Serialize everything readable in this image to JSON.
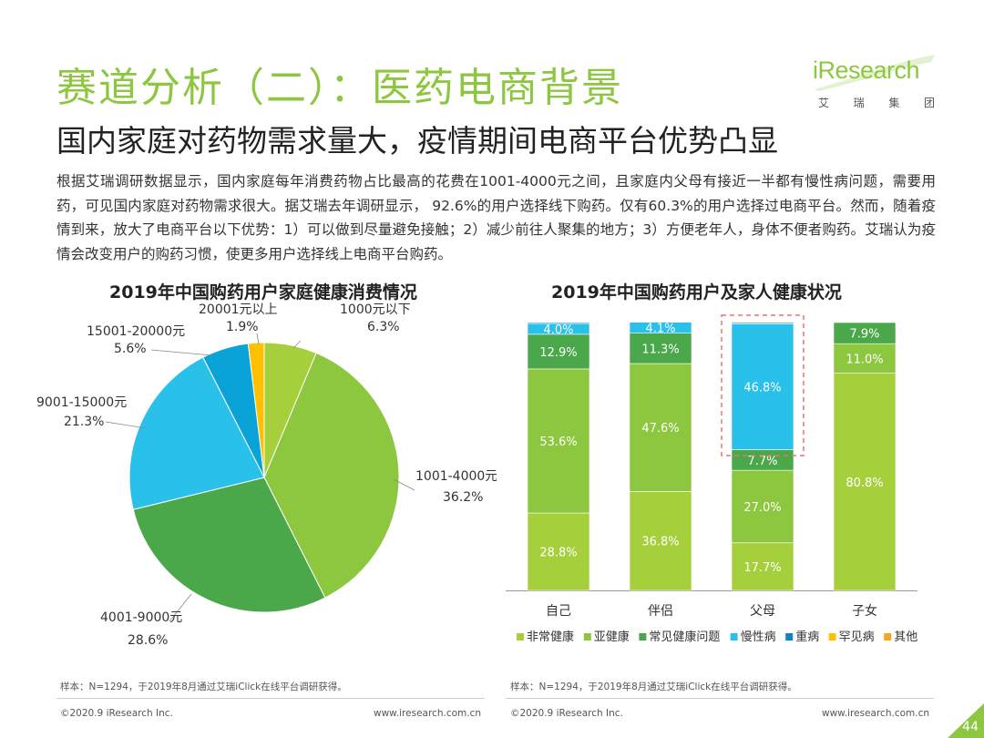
{
  "header": {
    "title": "赛道分析（二）：医药电商背景",
    "subtitle": "国内家庭对药物需求量大，疫情期间电商平台优势凸显"
  },
  "logo": {
    "word": "iResearch",
    "sub": [
      "艾",
      "瑞",
      "集",
      "团"
    ]
  },
  "paragraph": "根据艾瑞调研数据显示，国内家庭每年消费药物占比最高的花费在1001-4000元之间，且家庭内父母有接近一半都有慢性病问题，需要用药，可见国内家庭对药物需求很大。据艾瑞去年调研显示， 92.6%的用户选择线下购药。仅有60.3%的用户选择过电商平台。然而，随着疫情到来，放大了电商平台以下优势：1）可以做到尽量避免接触；2）减少前往人聚集的地方；3）方便老年人，身体不便者购药。艾瑞认为疫情会改变用户的购药习惯，使更多用户选择线上电商平台购药。",
  "chart_data": [
    {
      "type": "pie",
      "title": "2019年中国购药用户家庭健康消费情况",
      "slices": [
        {
          "label": "1000元以下",
          "value": 6.3,
          "display": "6.3%",
          "color": "#a6cf3c"
        },
        {
          "label": "1001-4000元",
          "value": 36.2,
          "display": "36.2%",
          "color": "#8dc63f"
        },
        {
          "label": "4001-9000元",
          "value": 28.6,
          "display": "28.6%",
          "color": "#4aa84a"
        },
        {
          "label": "9001-15000元",
          "value": 21.3,
          "display": "21.3%",
          "color": "#29c0ea"
        },
        {
          "label": "15001-20000元",
          "value": 5.6,
          "display": "5.6%",
          "color": "#0aa3d8"
        },
        {
          "label": "20001元以上",
          "value": 1.9,
          "display": "1.9%",
          "color": "#ffc000"
        }
      ]
    },
    {
      "type": "bar",
      "stacked": true,
      "title": "2019年中国购药用户及家人健康状况",
      "categories": [
        "自己",
        "伴侣",
        "父母",
        "子女"
      ],
      "series": [
        {
          "name": "非常健康",
          "color": "#a6cf3c",
          "values": [
            28.8,
            36.8,
            17.7,
            80.8
          ]
        },
        {
          "name": "亚健康",
          "color": "#8dc63f",
          "values": [
            53.6,
            47.6,
            27.0,
            11.0
          ]
        },
        {
          "name": "常见健康问题",
          "color": "#4aa84a",
          "values": [
            12.9,
            11.3,
            7.7,
            7.9
          ]
        },
        {
          "name": "慢性病",
          "color": "#29c0ea",
          "values": [
            4.0,
            4.1,
            46.8,
            0.0
          ]
        },
        {
          "name": "重病",
          "color": "#0a86c6",
          "values": [
            0.4,
            0.1,
            0.4,
            0.2
          ]
        },
        {
          "name": "罕见病",
          "color": "#ffc000",
          "values": [
            0.2,
            0.1,
            0.3,
            0.1
          ]
        },
        {
          "name": "其他",
          "color": "#f5a623",
          "values": [
            0.1,
            0.0,
            0.1,
            0.0
          ]
        }
      ],
      "data_labels": [
        [
          "28.8%",
          "53.6%",
          "12.9%",
          "4.0%"
        ],
        [
          "36.8%",
          "47.6%",
          "11.3%",
          "4.1%"
        ],
        [
          "17.7%",
          "27.0%",
          "7.7%",
          "46.8%"
        ],
        [
          "80.8%",
          "11.0%",
          "7.9%",
          ""
        ]
      ],
      "highlight_category": "父母",
      "ylim": [
        0,
        100
      ]
    }
  ],
  "notes": {
    "left": "样本：N=1294，于2019年8月通过艾瑞iClick在线平台调研获得。",
    "right": "样本：N=1294，于2019年8月通过艾瑞iClick在线平台调研获得。"
  },
  "footer": {
    "copyright_left": "©2020.9 iResearch Inc.",
    "url_left": "www.iresearch.com.cn",
    "copyright_right": "©2020.9 iResearch Inc.",
    "url_right": "www.iresearch.com.cn",
    "page": "44"
  }
}
